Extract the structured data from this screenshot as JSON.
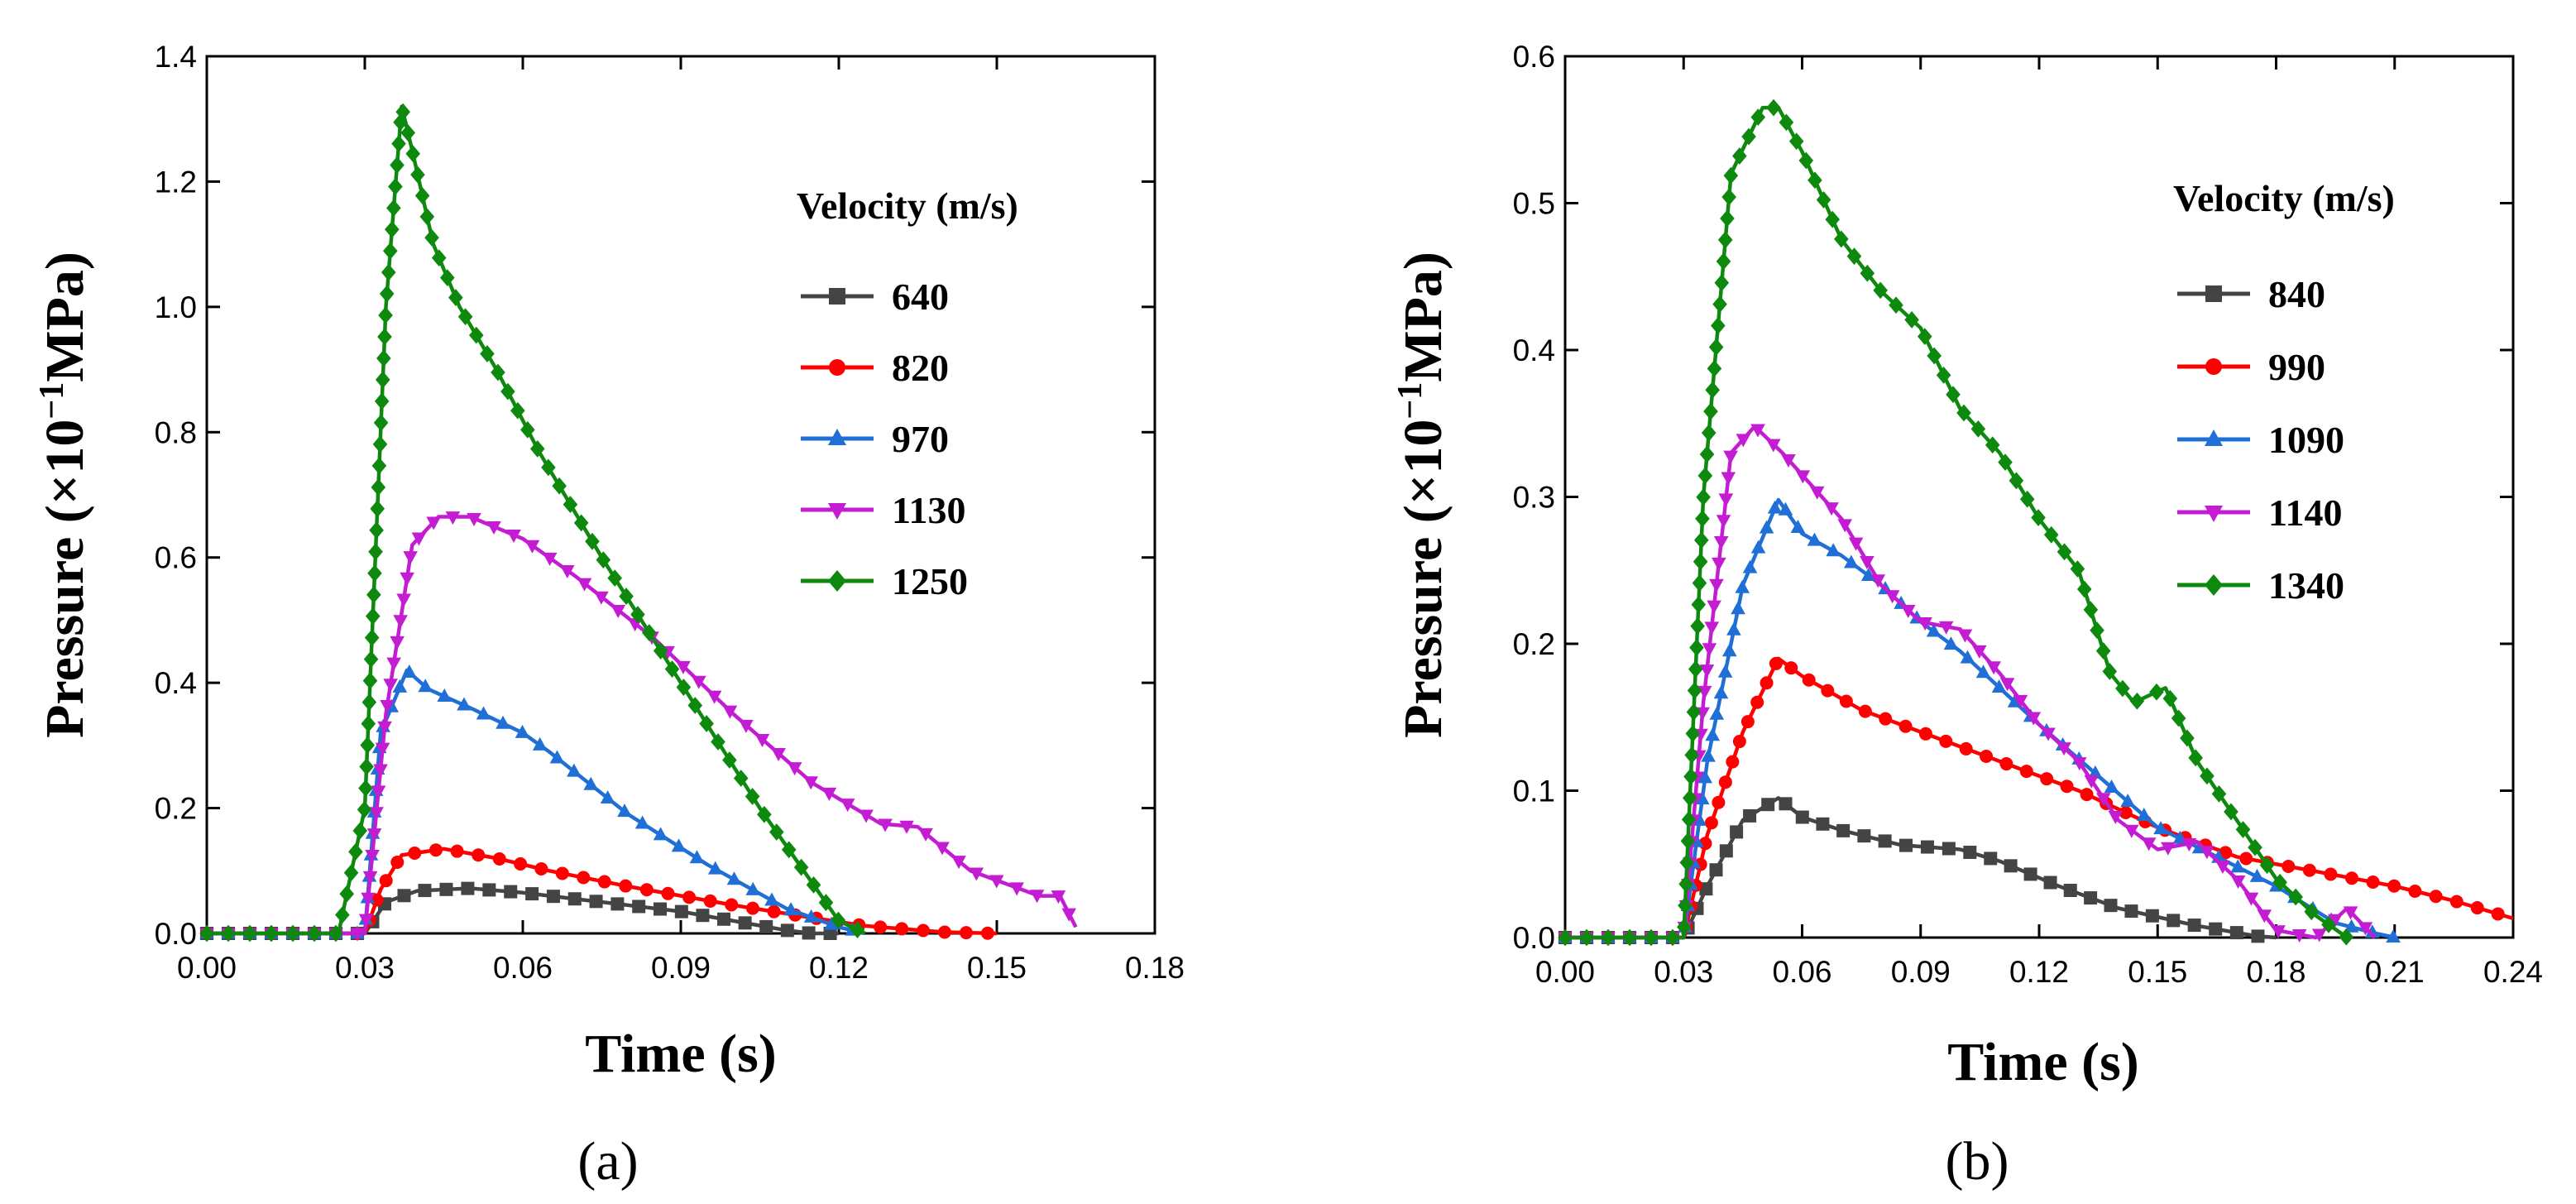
{
  "chart_data": [
    {
      "type": "line",
      "panel": "(a)",
      "xlabel": "Time (s)",
      "ylabel_main": "Pressure  (×10",
      "ylabel_exp": "−1",
      "ylabel_unit": "MPa)",
      "xlim": [
        0,
        0.18
      ],
      "ylim": [
        0,
        1.4
      ],
      "xticks": [
        "0.00",
        "0.03",
        "0.06",
        "0.09",
        "0.12",
        "0.15",
        "0.18"
      ],
      "xtick_values": [
        0,
        0.03,
        0.06,
        0.09,
        0.12,
        0.15,
        0.18
      ],
      "yticks": [
        "0.0",
        "0.2",
        "0.4",
        "0.6",
        "0.8",
        "1.0",
        "1.2",
        "1.4"
      ],
      "ytick_values": [
        0,
        0.2,
        0.4,
        0.6,
        0.8,
        1.0,
        1.2,
        1.4
      ],
      "legend_title": "Velocity (m/s)",
      "series": [
        {
          "name": "640",
          "color": "#444444",
          "marker": "square",
          "x": [
            0,
            0.03,
            0.034,
            0.04,
            0.05,
            0.06,
            0.07,
            0.08,
            0.09,
            0.1,
            0.11,
            0.115,
            0.12
          ],
          "y": [
            0,
            0,
            0.05,
            0.068,
            0.072,
            0.065,
            0.055,
            0.045,
            0.035,
            0.02,
            0.005,
            0,
            0
          ]
        },
        {
          "name": "820",
          "color": "#ff0000",
          "marker": "circle",
          "x": [
            0,
            0.03,
            0.033,
            0.037,
            0.045,
            0.055,
            0.065,
            0.08,
            0.1,
            0.115,
            0.125,
            0.14,
            0.15
          ],
          "y": [
            0,
            0,
            0.07,
            0.125,
            0.135,
            0.12,
            0.1,
            0.075,
            0.045,
            0.025,
            0.012,
            0.002,
            0
          ]
        },
        {
          "name": "970",
          "color": "#1f6fd6",
          "marker": "triangle-up",
          "x": [
            0,
            0.03,
            0.033,
            0.038,
            0.042,
            0.05,
            0.06,
            0.065,
            0.08,
            0.095,
            0.11,
            0.12,
            0.125
          ],
          "y": [
            0,
            0,
            0.32,
            0.42,
            0.39,
            0.36,
            0.32,
            0.29,
            0.19,
            0.11,
            0.04,
            0.01,
            0
          ]
        },
        {
          "name": "1130",
          "color": "#c41cd3",
          "marker": "triangle-down",
          "x": [
            0,
            0.03,
            0.034,
            0.039,
            0.044,
            0.05,
            0.06,
            0.07,
            0.085,
            0.1,
            0.115,
            0.128,
            0.135,
            0.145,
            0.158,
            0.162,
            0.165
          ],
          "y": [
            0,
            0,
            0.35,
            0.62,
            0.665,
            0.665,
            0.63,
            0.57,
            0.47,
            0.35,
            0.24,
            0.175,
            0.17,
            0.1,
            0.06,
            0.06,
            0.01
          ]
        },
        {
          "name": "1250",
          "color": "#0d8a0d",
          "marker": "diamond",
          "x": [
            0,
            0.025,
            0.03,
            0.034,
            0.037,
            0.039,
            0.043,
            0.048,
            0.055,
            0.063,
            0.075,
            0.09,
            0.105,
            0.115,
            0.12,
            0.125
          ],
          "y": [
            0,
            0,
            0.2,
            1.0,
            1.32,
            1.25,
            1.1,
            1.0,
            0.9,
            0.77,
            0.6,
            0.4,
            0.2,
            0.08,
            0.02,
            0
          ]
        }
      ]
    },
    {
      "type": "line",
      "panel": "(b)",
      "xlabel": "Time (s)",
      "ylabel_main": "Pressure  (×10",
      "ylabel_exp": "−1",
      "ylabel_unit": "MPa)",
      "xlim": [
        0,
        0.24
      ],
      "ylim": [
        0,
        0.6
      ],
      "xticks": [
        "0.00",
        "0.03",
        "0.06",
        "0.09",
        "0.12",
        "0.15",
        "0.18",
        "0.21",
        "0.24"
      ],
      "xtick_values": [
        0,
        0.03,
        0.06,
        0.09,
        0.12,
        0.15,
        0.18,
        0.21,
        0.24
      ],
      "yticks": [
        "0.0",
        "0.1",
        "0.2",
        "0.3",
        "0.4",
        "0.5",
        "0.6"
      ],
      "ytick_values": [
        0,
        0.1,
        0.2,
        0.3,
        0.4,
        0.5,
        0.6
      ],
      "legend_title": "Velocity (m/s)",
      "series": [
        {
          "name": "840",
          "color": "#444444",
          "marker": "square",
          "x": [
            0,
            0.03,
            0.036,
            0.045,
            0.054,
            0.06,
            0.07,
            0.085,
            0.1,
            0.11,
            0.125,
            0.14,
            0.16,
            0.175,
            0.18
          ],
          "y": [
            0,
            0,
            0.035,
            0.08,
            0.095,
            0.082,
            0.073,
            0.063,
            0.06,
            0.052,
            0.035,
            0.02,
            0.008,
            0.001,
            0
          ]
        },
        {
          "name": "990",
          "color": "#ff0000",
          "marker": "circle",
          "x": [
            0,
            0.03,
            0.036,
            0.045,
            0.054,
            0.06,
            0.075,
            0.09,
            0.11,
            0.13,
            0.15,
            0.17,
            0.19,
            0.21,
            0.225,
            0.24
          ],
          "y": [
            0,
            0,
            0.07,
            0.14,
            0.19,
            0.178,
            0.155,
            0.14,
            0.12,
            0.1,
            0.075,
            0.055,
            0.045,
            0.035,
            0.025,
            0.013
          ]
        },
        {
          "name": "1090",
          "color": "#1f6fd6",
          "marker": "triangle-up",
          "x": [
            0,
            0.03,
            0.036,
            0.045,
            0.054,
            0.06,
            0.07,
            0.08,
            0.09,
            0.1,
            0.11,
            0.12,
            0.135,
            0.15,
            0.165,
            0.18,
            0.195,
            0.205,
            0.21
          ],
          "y": [
            0,
            0,
            0.12,
            0.24,
            0.298,
            0.275,
            0.26,
            0.24,
            0.215,
            0.195,
            0.17,
            0.145,
            0.11,
            0.075,
            0.055,
            0.035,
            0.01,
            0.003,
            0
          ]
        },
        {
          "name": "1140",
          "color": "#c41cd3",
          "marker": "triangle-down",
          "x": [
            0,
            0.03,
            0.035,
            0.042,
            0.048,
            0.055,
            0.06,
            0.07,
            0.08,
            0.09,
            0.1,
            0.11,
            0.12,
            0.13,
            0.14,
            0.15,
            0.16,
            0.17,
            0.18,
            0.19,
            0.198,
            0.205
          ],
          "y": [
            0,
            0,
            0.16,
            0.33,
            0.348,
            0.33,
            0.315,
            0.285,
            0.24,
            0.215,
            0.21,
            0.18,
            0.145,
            0.12,
            0.08,
            0.06,
            0.065,
            0.04,
            0.005,
            0,
            0.02,
            0
          ]
        },
        {
          "name": "1340",
          "color": "#0d8a0d",
          "marker": "diamond",
          "x": [
            0,
            0.03,
            0.035,
            0.042,
            0.05,
            0.054,
            0.06,
            0.07,
            0.08,
            0.09,
            0.1,
            0.11,
            0.12,
            0.13,
            0.138,
            0.144,
            0.148,
            0.152,
            0.16,
            0.17,
            0.18,
            0.19,
            0.198
          ],
          "y": [
            0,
            0,
            0.3,
            0.52,
            0.565,
            0.565,
            0.535,
            0.475,
            0.44,
            0.415,
            0.36,
            0.33,
            0.285,
            0.25,
            0.18,
            0.16,
            0.165,
            0.17,
            0.12,
            0.08,
            0.04,
            0.015,
            0
          ]
        }
      ]
    }
  ]
}
